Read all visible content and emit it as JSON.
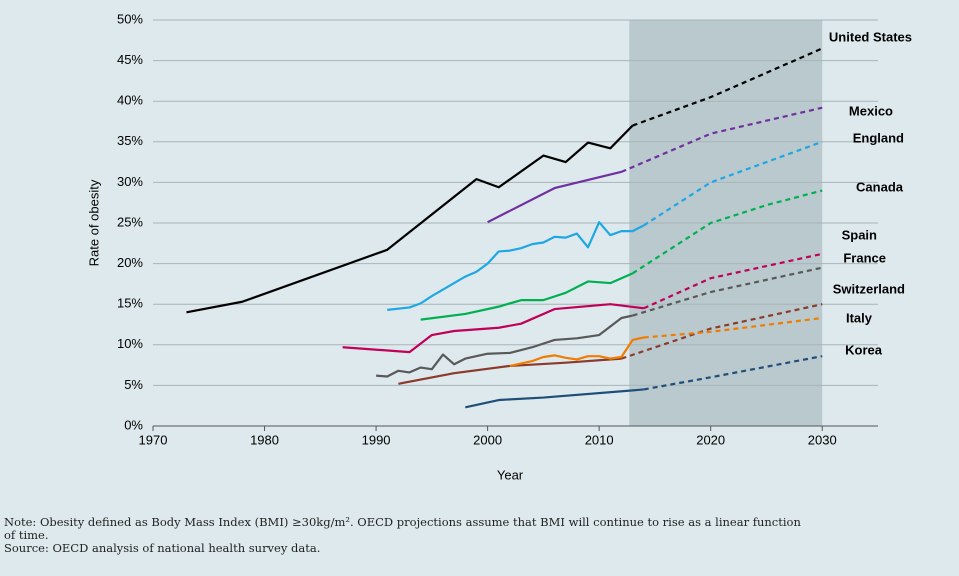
{
  "chart_data": {
    "type": "line",
    "ylabel": "Rate of obesity",
    "xlabel": "Year",
    "xlim": [
      1970,
      2035
    ],
    "xticks": [
      1970,
      1980,
      1990,
      2000,
      2010,
      2020,
      2030
    ],
    "ylim": [
      0,
      50
    ],
    "yticks": [
      {
        "value": 0,
        "label": "0%"
      },
      {
        "value": 5,
        "label": "5%"
      },
      {
        "value": 10,
        "label": "10%"
      },
      {
        "value": 15,
        "label": "15%"
      },
      {
        "value": 20,
        "label": "20%"
      },
      {
        "value": 25,
        "label": "25%"
      },
      {
        "value": 30,
        "label": "30%"
      },
      {
        "value": 35,
        "label": "35%"
      },
      {
        "value": 40,
        "label": "40%"
      },
      {
        "value": 45,
        "label": "45%"
      },
      {
        "value": 50,
        "label": "50%"
      }
    ],
    "grid": true,
    "shaded_range": [
      2012.7,
      2030
    ],
    "shaded_color": "#b9c9cd",
    "series": [
      {
        "name": "United States",
        "color": "#000000",
        "label_color": "#000000",
        "x": [
          1973,
          1978,
          1991,
          1999,
          2001,
          2005,
          2007,
          2009,
          2011,
          2013
        ],
        "values": [
          14,
          15.3,
          21.7,
          30.4,
          29.4,
          33.3,
          32.5,
          34.9,
          34.2,
          37
        ],
        "projection_x": [
          2020,
          2030
        ],
        "projection_values": [
          40.5,
          46.5
        ]
      },
      {
        "name": "Mexico",
        "color": "#7030a0",
        "label_color": "#7030a0",
        "x": [
          2000,
          2006,
          2012
        ],
        "values": [
          25.1,
          29.3,
          31.3
        ],
        "projection_x": [
          2020,
          2030
        ],
        "projection_values": [
          36,
          39.2
        ]
      },
      {
        "name": "England",
        "color": "#1ea7e4",
        "label_color": "#1ea7e4",
        "x": [
          1991,
          1993,
          1994,
          1995,
          1996,
          1997,
          1998,
          1999,
          2000,
          2001,
          2002,
          2003,
          2004,
          2005,
          2006,
          2007,
          2008,
          2009,
          2010,
          2011,
          2012,
          2013,
          2014
        ],
        "values": [
          14.3,
          14.6,
          15.1,
          16,
          16.8,
          17.6,
          18.4,
          19,
          20,
          21.5,
          21.6,
          21.9,
          22.4,
          22.6,
          23.3,
          23.2,
          23.7,
          22,
          25.1,
          23.5,
          24,
          24,
          24.7
        ],
        "projection_x": [
          2020,
          2030
        ],
        "projection_values": [
          30,
          35
        ]
      },
      {
        "name": "Canada",
        "color": "#00b050",
        "label_color": "#d9534f",
        "x": [
          1994,
          1998,
          2001,
          2003,
          2005,
          2007,
          2009,
          2011,
          2013
        ],
        "values": [
          13.1,
          13.8,
          14.7,
          15.5,
          15.5,
          16.4,
          17.8,
          17.6,
          18.8
        ],
        "projection_x": [
          2020,
          2025,
          2030
        ],
        "projection_values": [
          25,
          27.2,
          29
        ]
      },
      {
        "name": "Spain",
        "color": "#c0005a",
        "label_color": "#a0003c",
        "x": [
          1987,
          1993,
          1995,
          1997,
          2001,
          2003,
          2006,
          2011,
          2014
        ],
        "values": [
          9.7,
          9.1,
          11.2,
          11.7,
          12.1,
          12.6,
          14.4,
          15,
          14.5
        ],
        "projection_x": [
          2020,
          2030
        ],
        "projection_values": [
          18.2,
          21.2
        ]
      },
      {
        "name": "France",
        "color": "#595959",
        "label_color": "#000000",
        "x": [
          1990,
          1991,
          1992,
          1993,
          1994,
          1995,
          1996,
          1997,
          1998,
          2000,
          2002,
          2004,
          2006,
          2008,
          2010,
          2012,
          2013
        ],
        "values": [
          6.2,
          6.1,
          6.8,
          6.6,
          7.2,
          7,
          8.8,
          7.6,
          8.3,
          8.9,
          9,
          9.7,
          10.6,
          10.8,
          11.2,
          13.3,
          13.6
        ],
        "projection_x": [
          2020,
          2030
        ],
        "projection_values": [
          16.5,
          19.5
        ]
      },
      {
        "name": "Switzerland",
        "color": "#8b3a2b",
        "label_color": "#8b3a2b",
        "x": [
          1992,
          1997,
          2002,
          2007,
          2012
        ],
        "values": [
          5.2,
          6.5,
          7.4,
          7.8,
          8.3
        ],
        "projection_x": [
          2020,
          2030
        ],
        "projection_values": [
          12,
          15
        ]
      },
      {
        "name": "Italy",
        "color": "#f07c00",
        "label_color": "#f07c00",
        "x": [
          2002,
          2004,
          2005,
          2006,
          2007,
          2008,
          2009,
          2010,
          2011,
          2012,
          2013,
          2014
        ],
        "values": [
          7.4,
          8,
          8.5,
          8.7,
          8.4,
          8.2,
          8.6,
          8.6,
          8.3,
          8.5,
          10.6,
          10.9
        ],
        "projection_x": [
          2020,
          2030
        ],
        "projection_values": [
          11.6,
          13.3
        ]
      },
      {
        "name": "Korea",
        "color": "#1f4e79",
        "label_color": "#1f4e79",
        "x": [
          1998,
          2001,
          2005,
          2014
        ],
        "values": [
          2.3,
          3.2,
          3.5,
          4.5
        ],
        "projection_x": [
          2020,
          2030
        ],
        "projection_values": [
          6,
          8.6
        ]
      }
    ],
    "note": [
      "Note: Obesity defined as Body Mass Index (BMI) ≥30kg/m². OECD projections assume that BMI will continue to rise as a linear function",
      "of time.",
      "Source: OECD analysis of national health survey data."
    ]
  }
}
